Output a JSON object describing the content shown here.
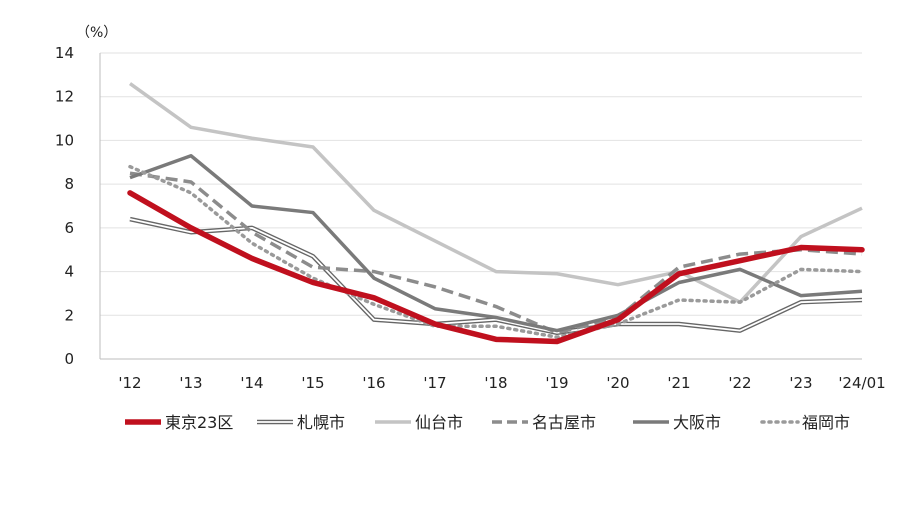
{
  "chart_data": {
    "type": "line",
    "title": "",
    "xlabel": "",
    "ylabel": "",
    "unit_label": "（%）",
    "ylim": [
      0,
      14
    ],
    "yticks": [
      "0",
      "2",
      "4",
      "6",
      "8",
      "10",
      "12",
      "14"
    ],
    "categories": [
      "'12",
      "'13",
      "'14",
      "'15",
      "'16",
      "'17",
      "'18",
      "'19",
      "'20",
      "'21",
      "'22",
      "'23",
      "'24/01"
    ],
    "grid": true,
    "legend_position": "bottom",
    "series": [
      {
        "name": "札幌市",
        "values": [
          6.4,
          5.8,
          6.0,
          4.7,
          1.8,
          1.6,
          1.8,
          1.2,
          1.6,
          1.6,
          1.3,
          2.6,
          2.7
        ],
        "color": "#666666",
        "style": "double"
      },
      {
        "name": "仙台市",
        "values": [
          12.6,
          10.6,
          10.1,
          9.7,
          6.8,
          5.4,
          4.0,
          3.9,
          3.4,
          4.0,
          2.6,
          5.6,
          6.9
        ],
        "color": "#c4c4c4",
        "style": "solid"
      },
      {
        "name": "名古屋市",
        "values": [
          8.5,
          8.1,
          5.8,
          4.2,
          4.0,
          3.3,
          2.4,
          1.2,
          1.9,
          4.2,
          4.8,
          5.0,
          4.8
        ],
        "color": "#8c8c8c",
        "style": "dashed"
      },
      {
        "name": "大阪市",
        "values": [
          8.3,
          9.3,
          7.0,
          6.7,
          3.7,
          2.3,
          1.9,
          1.3,
          2.0,
          3.5,
          4.1,
          2.9,
          3.1
        ],
        "color": "#7a7a7a",
        "style": "solid"
      },
      {
        "name": "福岡市",
        "values": [
          8.8,
          7.6,
          5.3,
          3.7,
          2.5,
          1.5,
          1.5,
          1.0,
          1.6,
          2.7,
          2.6,
          4.1,
          4.0
        ],
        "color": "#9a9a9a",
        "style": "dotted"
      },
      {
        "name": "東京23区",
        "values": [
          7.6,
          6.0,
          4.6,
          3.5,
          2.8,
          1.6,
          0.9,
          0.8,
          1.8,
          3.9,
          4.5,
          5.1,
          5.0
        ],
        "color": "#c0101e",
        "style": "bold"
      }
    ],
    "legend": [
      "東京23区",
      "札幌市",
      "仙台市",
      "名古屋市",
      "大阪市",
      "福岡市"
    ]
  }
}
